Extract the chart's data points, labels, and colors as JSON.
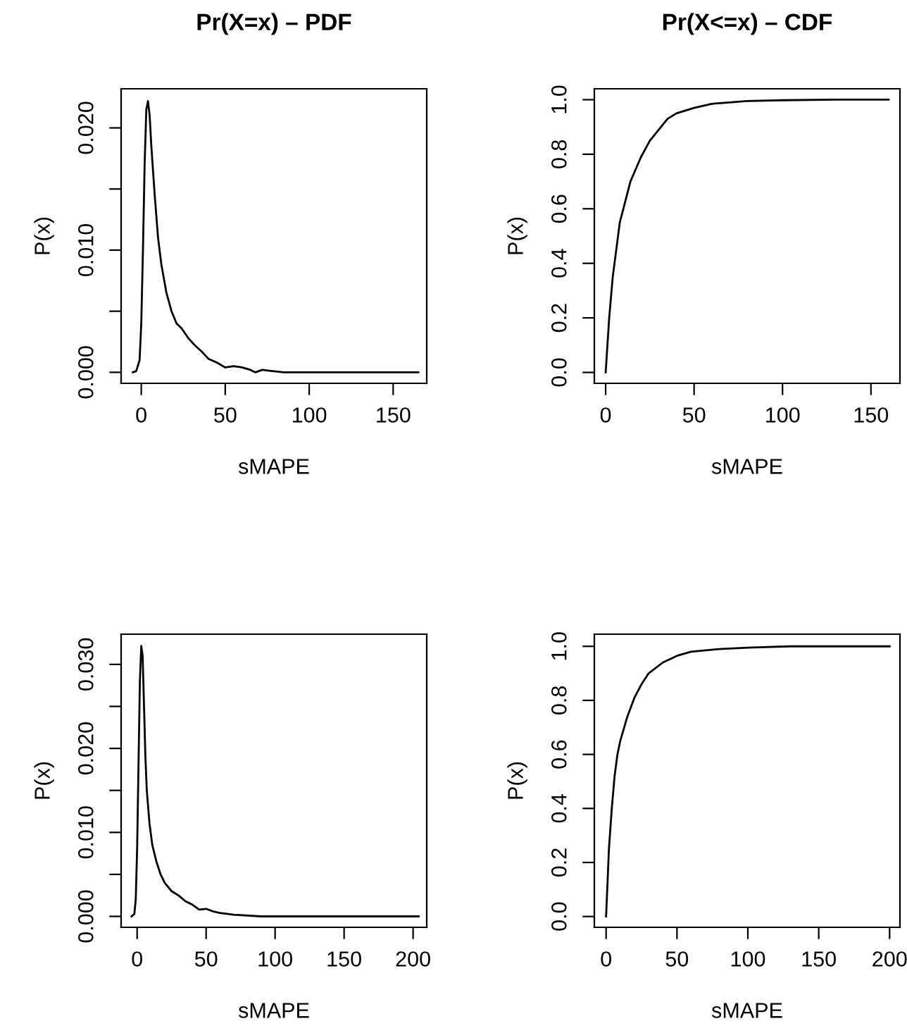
{
  "chart_data": [
    {
      "type": "line",
      "title": "Pr(X=x) – PDF",
      "xlabel": "sMAPE",
      "ylabel": "P(x)",
      "xlim": [
        -12,
        170
      ],
      "ylim": [
        -0.0009,
        0.0232
      ],
      "xticks": [
        0,
        50,
        100,
        150
      ],
      "yticks": [
        {
          "value": 0,
          "label": "0.000"
        },
        {
          "value": 0.005,
          "label": null
        },
        {
          "value": 0.01,
          "label": "0.010"
        },
        {
          "value": 0.015,
          "label": null
        },
        {
          "value": 0.02,
          "label": "0.020"
        }
      ],
      "grid": false,
      "legend": false,
      "series": [
        {
          "color": "#000000",
          "x": [
            -5,
            -3,
            -1,
            0,
            1,
            2,
            3,
            4,
            5,
            6,
            8,
            10,
            12,
            15,
            18,
            21,
            24,
            28,
            32,
            36,
            40,
            45,
            50,
            55,
            60,
            65,
            68,
            72,
            78,
            85,
            100,
            130,
            165
          ],
          "values": [
            0,
            0.0001,
            0.001,
            0.004,
            0.01,
            0.017,
            0.0215,
            0.0222,
            0.021,
            0.0185,
            0.0145,
            0.011,
            0.0088,
            0.0065,
            0.005,
            0.004,
            0.0036,
            0.0028,
            0.0022,
            0.0017,
            0.0011,
            0.0008,
            0.0004,
            0.0005,
            0.0004,
            0.0002,
            0,
            0.0002,
            0.0001,
            0,
            0,
            0,
            0
          ]
        }
      ]
    },
    {
      "type": "line",
      "title": "Pr(X<=x) – CDF",
      "xlabel": "sMAPE",
      "ylabel": "P(x)",
      "xlim": [
        -6.4,
        166.4
      ],
      "ylim": [
        -0.04,
        1.04
      ],
      "xticks": [
        0,
        50,
        100,
        150
      ],
      "yticks": [
        {
          "value": 0,
          "label": "0.0"
        },
        {
          "value": 0.2,
          "label": "0.2"
        },
        {
          "value": 0.4,
          "label": "0.4"
        },
        {
          "value": 0.6,
          "label": "0.6"
        },
        {
          "value": 0.8,
          "label": "0.8"
        },
        {
          "value": 1,
          "label": "1.0"
        }
      ],
      "grid": false,
      "legend": false,
      "series": [
        {
          "color": "#000000",
          "x": [
            0,
            2,
            4,
            6,
            8,
            10,
            14,
            20,
            25,
            30,
            35,
            40,
            50,
            60,
            70,
            80,
            100,
            130,
            160
          ],
          "values": [
            0,
            0.2,
            0.35,
            0.45,
            0.55,
            0.6,
            0.7,
            0.79,
            0.85,
            0.89,
            0.93,
            0.95,
            0.97,
            0.985,
            0.99,
            0.995,
            0.998,
            1,
            1
          ]
        }
      ]
    },
    {
      "type": "line",
      "xlabel": "sMAPE",
      "ylabel": "P(x)",
      "xlim": [
        -11.6,
        209.9
      ],
      "ylim": [
        -0.0013,
        0.0336
      ],
      "xticks": [
        0,
        50,
        100,
        150,
        200
      ],
      "yticks": [
        {
          "value": 0,
          "label": "0.000"
        },
        {
          "value": 0.005,
          "label": null
        },
        {
          "value": 0.01,
          "label": "0.010"
        },
        {
          "value": 0.015,
          "label": null
        },
        {
          "value": 0.02,
          "label": "0.020"
        },
        {
          "value": 0.025,
          "label": null
        },
        {
          "value": 0.03,
          "label": "0.030"
        }
      ],
      "grid": false,
      "legend": false,
      "series": [
        {
          "color": "#000000",
          "x": [
            -4,
            -2,
            -1,
            0,
            1,
            2,
            3,
            4,
            5,
            6,
            7,
            9,
            11,
            14,
            17,
            20,
            25,
            30,
            35,
            40,
            45,
            50,
            55,
            60,
            70,
            90,
            120,
            160,
            204
          ],
          "values": [
            0,
            0.0003,
            0.002,
            0.008,
            0.018,
            0.028,
            0.0322,
            0.031,
            0.025,
            0.019,
            0.015,
            0.011,
            0.0085,
            0.0065,
            0.005,
            0.004,
            0.003,
            0.0025,
            0.0018,
            0.0014,
            0.0008,
            0.0009,
            0.0006,
            0.0004,
            0.0002,
            0,
            0,
            0,
            0
          ]
        }
      ]
    },
    {
      "type": "line",
      "xlabel": "sMAPE",
      "ylabel": "P(x)",
      "xlim": [
        -8.3,
        207.3
      ],
      "ylim": [
        -0.04,
        1.045
      ],
      "xticks": [
        0,
        50,
        100,
        150,
        200
      ],
      "yticks": [
        {
          "value": 0,
          "label": "0.0"
        },
        {
          "value": 0.2,
          "label": "0.2"
        },
        {
          "value": 0.4,
          "label": "0.4"
        },
        {
          "value": 0.6,
          "label": "0.6"
        },
        {
          "value": 0.8,
          "label": "0.8"
        },
        {
          "value": 1,
          "label": "1.0"
        }
      ],
      "grid": false,
      "legend": false,
      "series": [
        {
          "color": "#000000",
          "x": [
            0,
            2,
            4,
            6,
            8,
            10,
            15,
            20,
            25,
            30,
            40,
            50,
            60,
            80,
            100,
            130,
            200
          ],
          "values": [
            0,
            0.25,
            0.4,
            0.52,
            0.6,
            0.65,
            0.74,
            0.81,
            0.86,
            0.9,
            0.94,
            0.965,
            0.98,
            0.99,
            0.995,
            1,
            1
          ]
        }
      ]
    }
  ]
}
